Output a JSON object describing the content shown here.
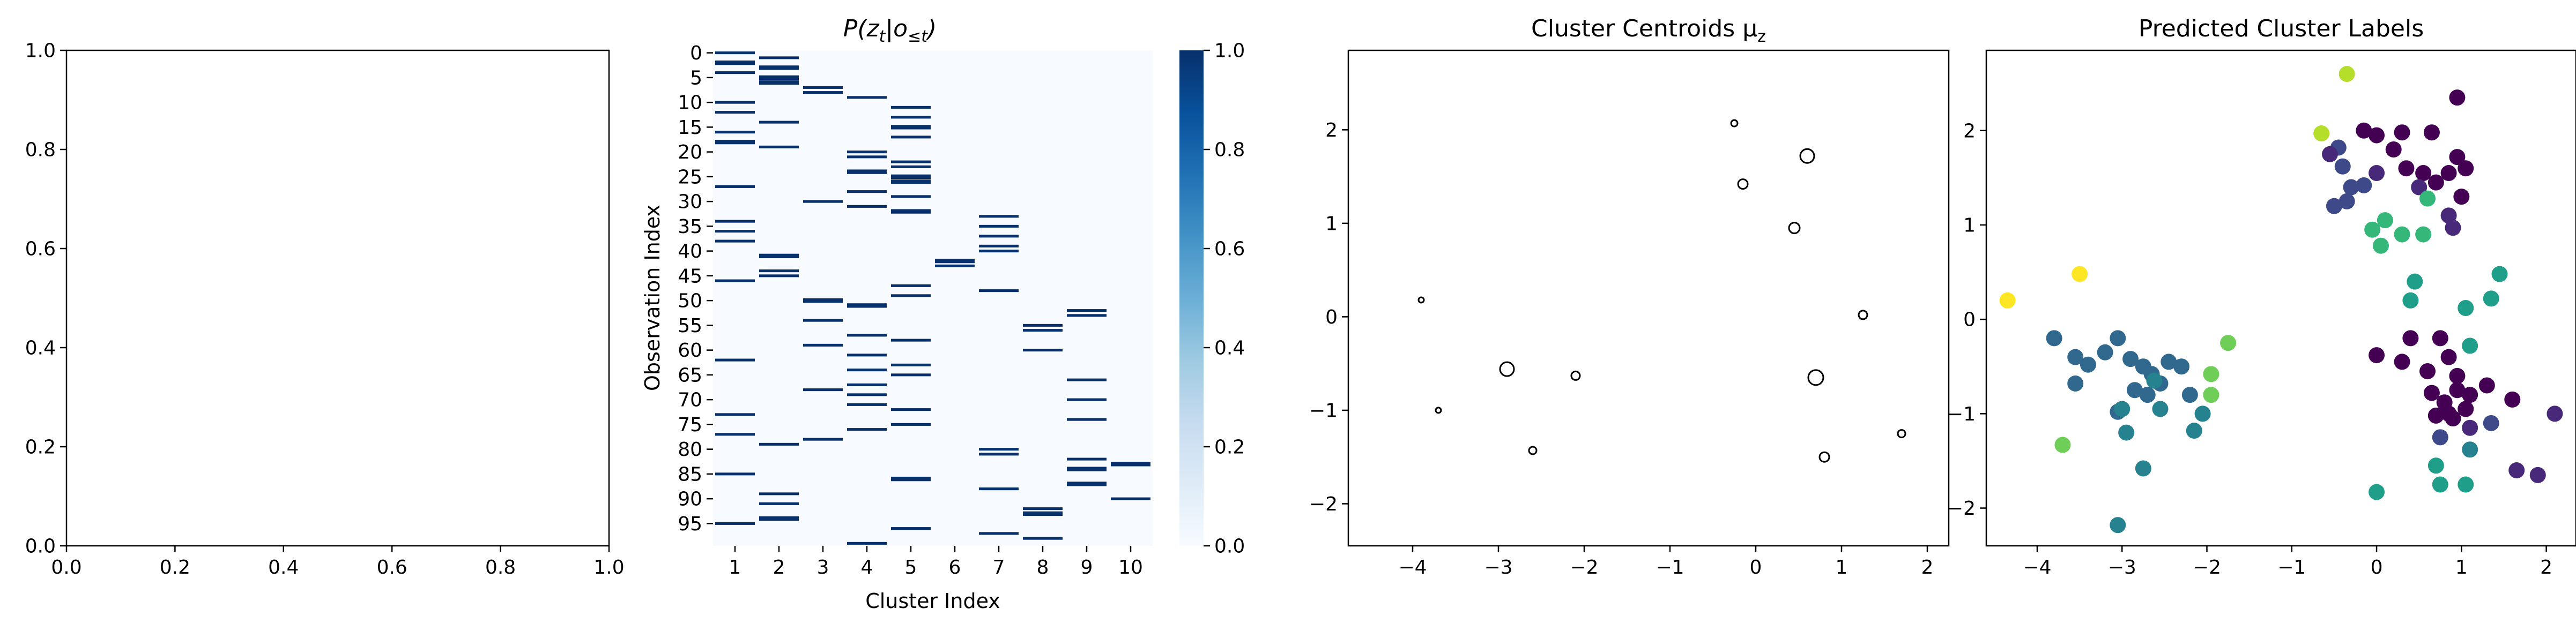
{
  "chart_data": [
    {
      "panel": 1,
      "type": "scatter",
      "title": "",
      "xlabel": "",
      "ylabel": "",
      "xlim": [
        0,
        1
      ],
      "ylim": [
        0,
        1
      ],
      "xticks": [
        "0.0",
        "0.2",
        "0.4",
        "0.6",
        "0.8",
        "1.0"
      ],
      "yticks": [
        "0.0",
        "0.2",
        "0.4",
        "0.6",
        "0.8",
        "1.0"
      ],
      "points": []
    },
    {
      "panel": 2,
      "type": "heatmap",
      "title": "P(z_t|o_≤t)",
      "title_main": "P(z",
      "title_sub1": "t",
      "title_mid": "|o",
      "title_sub2": "≤t",
      "title_end": ")",
      "xlabel": "Cluster Index",
      "ylabel": "Observation Index",
      "xticks": [
        "1",
        "2",
        "3",
        "4",
        "5",
        "6",
        "7",
        "8",
        "9",
        "10"
      ],
      "yticks": [
        "0",
        "5",
        "10",
        "15",
        "20",
        "25",
        "30",
        "35",
        "40",
        "45",
        "50",
        "55",
        "60",
        "65",
        "70",
        "75",
        "80",
        "85",
        "90",
        "95"
      ],
      "colorbar_ticks": [
        "0.0",
        "0.2",
        "0.4",
        "0.6",
        "0.8",
        "1.0"
      ],
      "colorbar_range": [
        0,
        1
      ],
      "colormap": [
        "#f7fbff",
        "#deebf7",
        "#c6dbef",
        "#9ecae1",
        "#6baed6",
        "#4292c6",
        "#2171b5",
        "#08519c",
        "#08306b"
      ],
      "n_rows": 100,
      "n_cols": 10,
      "assignments": [
        1,
        2,
        1,
        2,
        1,
        2,
        2,
        3,
        3,
        4,
        1,
        5,
        1,
        5,
        2,
        5,
        1,
        5,
        1,
        2,
        4,
        4,
        5,
        5,
        4,
        5,
        5,
        1,
        4,
        5,
        3,
        4,
        5,
        7,
        1,
        7,
        1,
        7,
        1,
        7,
        7,
        2,
        6,
        6,
        2,
        2,
        1,
        5,
        7,
        5,
        3,
        4,
        9,
        9,
        3,
        8,
        8,
        4,
        5,
        3,
        8,
        4,
        1,
        5,
        4,
        5,
        9,
        4,
        3,
        4,
        9,
        4,
        5,
        1,
        9,
        5,
        4,
        1,
        3,
        2,
        7,
        7,
        9,
        10,
        9,
        1,
        5,
        9,
        7,
        2,
        10,
        2,
        8,
        8,
        2,
        1,
        5,
        7,
        8,
        4
      ],
      "wide_rows": [
        2,
        3,
        5,
        6,
        15,
        18,
        24,
        25,
        26,
        32,
        41,
        42,
        50,
        51,
        83,
        84,
        86,
        87,
        93,
        94
      ]
    },
    {
      "panel": 3,
      "type": "scatter",
      "title": "Cluster Centroids μ_z",
      "title_main": "Cluster Centroids μ",
      "title_sub": "z",
      "xlabel": "",
      "ylabel": "",
      "xlim": [
        -4.75,
        2.25
      ],
      "ylim": [
        -2.45,
        2.85
      ],
      "xticks": [
        -4,
        -3,
        -2,
        -1,
        0,
        1,
        2
      ],
      "yticks": [
        -2,
        -1,
        0,
        1,
        2
      ],
      "points": [
        {
          "x": -3.9,
          "y": 0.18,
          "size": 5
        },
        {
          "x": -3.7,
          "y": -1.0,
          "size": 5
        },
        {
          "x": -2.9,
          "y": -0.56,
          "size": 13
        },
        {
          "x": -2.6,
          "y": -1.43,
          "size": 7
        },
        {
          "x": -2.1,
          "y": -0.63,
          "size": 8
        },
        {
          "x": -0.25,
          "y": 2.07,
          "size": 6
        },
        {
          "x": -0.15,
          "y": 1.42,
          "size": 9
        },
        {
          "x": 0.45,
          "y": 0.95,
          "size": 10
        },
        {
          "x": 0.6,
          "y": 1.72,
          "size": 13
        },
        {
          "x": 0.7,
          "y": -0.65,
          "size": 14
        },
        {
          "x": 0.8,
          "y": -1.5,
          "size": 9
        },
        {
          "x": 1.25,
          "y": 0.02,
          "size": 8
        },
        {
          "x": 1.7,
          "y": -1.25,
          "size": 7
        }
      ]
    },
    {
      "panel": 4,
      "type": "scatter",
      "title": "Predicted Cluster Labels",
      "xlabel": "",
      "ylabel": "",
      "xlim": [
        -4.6,
        2.35
      ],
      "ylim": [
        -2.4,
        2.85
      ],
      "xticks": [
        -4,
        -3,
        -2,
        -1,
        0,
        1,
        2
      ],
      "yticks": [
        -2,
        -1,
        0,
        1,
        2
      ],
      "palette": [
        "#440154",
        "#482878",
        "#3e4989",
        "#31688e",
        "#26828e",
        "#1f9e89",
        "#35b779",
        "#6ece58",
        "#b5de2b",
        "#fde725"
      ],
      "points": [
        {
          "x": -0.35,
          "y": 2.6,
          "c": 8
        },
        {
          "x": -0.65,
          "y": 1.97,
          "c": 8
        },
        {
          "x": -4.35,
          "y": 0.2,
          "c": 9
        },
        {
          "x": -3.5,
          "y": 0.48,
          "c": 9
        },
        {
          "x": -3.7,
          "y": -1.33,
          "c": 7
        },
        {
          "x": -1.95,
          "y": -0.58,
          "c": 7
        },
        {
          "x": -1.75,
          "y": -0.25,
          "c": 7
        },
        {
          "x": -1.95,
          "y": -0.8,
          "c": 7
        },
        {
          "x": -3.8,
          "y": -0.2,
          "c": 3
        },
        {
          "x": -3.55,
          "y": -0.4,
          "c": 3
        },
        {
          "x": -3.4,
          "y": -0.48,
          "c": 3
        },
        {
          "x": -3.2,
          "y": -0.35,
          "c": 3
        },
        {
          "x": -3.05,
          "y": -0.2,
          "c": 3
        },
        {
          "x": -2.9,
          "y": -0.42,
          "c": 3
        },
        {
          "x": -2.75,
          "y": -0.5,
          "c": 3
        },
        {
          "x": -2.65,
          "y": -0.58,
          "c": 3
        },
        {
          "x": -2.55,
          "y": -0.68,
          "c": 3
        },
        {
          "x": -2.7,
          "y": -0.8,
          "c": 3
        },
        {
          "x": -2.85,
          "y": -0.75,
          "c": 3
        },
        {
          "x": -2.45,
          "y": -0.45,
          "c": 3
        },
        {
          "x": -2.3,
          "y": -0.5,
          "c": 3
        },
        {
          "x": -2.2,
          "y": -0.8,
          "c": 3
        },
        {
          "x": -3.55,
          "y": -0.68,
          "c": 3
        },
        {
          "x": -3.05,
          "y": -0.98,
          "c": 3
        },
        {
          "x": -2.55,
          "y": -0.95,
          "c": 4
        },
        {
          "x": -2.05,
          "y": -1.0,
          "c": 4
        },
        {
          "x": -2.15,
          "y": -1.18,
          "c": 4
        },
        {
          "x": -2.95,
          "y": -1.2,
          "c": 4
        },
        {
          "x": -2.75,
          "y": -1.58,
          "c": 4
        },
        {
          "x": -3.05,
          "y": -2.18,
          "c": 4
        },
        {
          "x": -3.0,
          "y": -0.95,
          "c": 4
        },
        {
          "x": -2.62,
          "y": -0.65,
          "c": 4
        },
        {
          "x": -0.45,
          "y": 1.82,
          "c": 2
        },
        {
          "x": -0.4,
          "y": 1.62,
          "c": 2
        },
        {
          "x": -0.3,
          "y": 1.4,
          "c": 2
        },
        {
          "x": -0.15,
          "y": 1.42,
          "c": 2
        },
        {
          "x": -0.35,
          "y": 1.25,
          "c": 2
        },
        {
          "x": -0.5,
          "y": 1.2,
          "c": 2
        },
        {
          "x": -0.55,
          "y": 1.75,
          "c": 1
        },
        {
          "x": -0.15,
          "y": 2.0,
          "c": 0
        },
        {
          "x": 0.0,
          "y": 1.95,
          "c": 0
        },
        {
          "x": 0.3,
          "y": 1.98,
          "c": 0
        },
        {
          "x": 0.2,
          "y": 1.8,
          "c": 0
        },
        {
          "x": 0.35,
          "y": 1.6,
          "c": 0
        },
        {
          "x": 0.55,
          "y": 1.55,
          "c": 0
        },
        {
          "x": 0.65,
          "y": 1.98,
          "c": 0
        },
        {
          "x": 0.95,
          "y": 2.35,
          "c": 0
        },
        {
          "x": 0.95,
          "y": 1.72,
          "c": 0
        },
        {
          "x": 0.85,
          "y": 1.55,
          "c": 0
        },
        {
          "x": 1.05,
          "y": 1.6,
          "c": 0
        },
        {
          "x": 1.0,
          "y": 1.3,
          "c": 0
        },
        {
          "x": 0.7,
          "y": 1.45,
          "c": 0
        },
        {
          "x": 0.5,
          "y": 1.4,
          "c": 1
        },
        {
          "x": 0.0,
          "y": 1.55,
          "c": 1
        },
        {
          "x": 0.85,
          "y": 1.1,
          "c": 1
        },
        {
          "x": 0.9,
          "y": 0.97,
          "c": 1
        },
        {
          "x": 0.6,
          "y": 1.28,
          "c": 6
        },
        {
          "x": 0.1,
          "y": 1.05,
          "c": 6
        },
        {
          "x": -0.05,
          "y": 0.95,
          "c": 6
        },
        {
          "x": 0.05,
          "y": 0.78,
          "c": 6
        },
        {
          "x": 0.3,
          "y": 0.9,
          "c": 6
        },
        {
          "x": 0.55,
          "y": 0.9,
          "c": 6
        },
        {
          "x": 0.4,
          "y": 0.2,
          "c": 5
        },
        {
          "x": 0.45,
          "y": 0.4,
          "c": 5
        },
        {
          "x": 1.05,
          "y": 0.12,
          "c": 5
        },
        {
          "x": 1.35,
          "y": 0.22,
          "c": 5
        },
        {
          "x": 1.45,
          "y": 0.48,
          "c": 5
        },
        {
          "x": 1.1,
          "y": -0.28,
          "c": 5
        },
        {
          "x": 0.0,
          "y": -1.83,
          "c": 5
        },
        {
          "x": 0.7,
          "y": -1.55,
          "c": 5
        },
        {
          "x": 0.75,
          "y": -1.75,
          "c": 5
        },
        {
          "x": 1.05,
          "y": -1.75,
          "c": 5
        },
        {
          "x": 1.1,
          "y": -1.38,
          "c": 4
        },
        {
          "x": 0.4,
          "y": -0.2,
          "c": 0
        },
        {
          "x": 0.75,
          "y": -0.2,
          "c": 0
        },
        {
          "x": 0.85,
          "y": -0.4,
          "c": 0
        },
        {
          "x": 0.0,
          "y": -0.38,
          "c": 0
        },
        {
          "x": 0.3,
          "y": -0.45,
          "c": 0
        },
        {
          "x": 0.6,
          "y": -0.55,
          "c": 0
        },
        {
          "x": 0.65,
          "y": -0.78,
          "c": 0
        },
        {
          "x": 0.8,
          "y": -0.88,
          "c": 0
        },
        {
          "x": 0.85,
          "y": -1.0,
          "c": 0
        },
        {
          "x": 0.95,
          "y": -0.75,
          "c": 0
        },
        {
          "x": 1.05,
          "y": -0.95,
          "c": 0
        },
        {
          "x": 0.9,
          "y": -1.05,
          "c": 0
        },
        {
          "x": 0.7,
          "y": -1.02,
          "c": 0
        },
        {
          "x": 1.1,
          "y": -0.8,
          "c": 0
        },
        {
          "x": 1.3,
          "y": -0.7,
          "c": 0
        },
        {
          "x": 1.6,
          "y": -0.85,
          "c": 0
        },
        {
          "x": 2.1,
          "y": -1.0,
          "c": 1
        },
        {
          "x": 1.65,
          "y": -1.6,
          "c": 1
        },
        {
          "x": 1.9,
          "y": -1.65,
          "c": 1
        },
        {
          "x": 1.1,
          "y": -1.15,
          "c": 1
        },
        {
          "x": 0.75,
          "y": -1.25,
          "c": 2
        },
        {
          "x": 1.35,
          "y": -1.1,
          "c": 2
        },
        {
          "x": 0.95,
          "y": -0.6,
          "c": 0
        }
      ]
    }
  ]
}
